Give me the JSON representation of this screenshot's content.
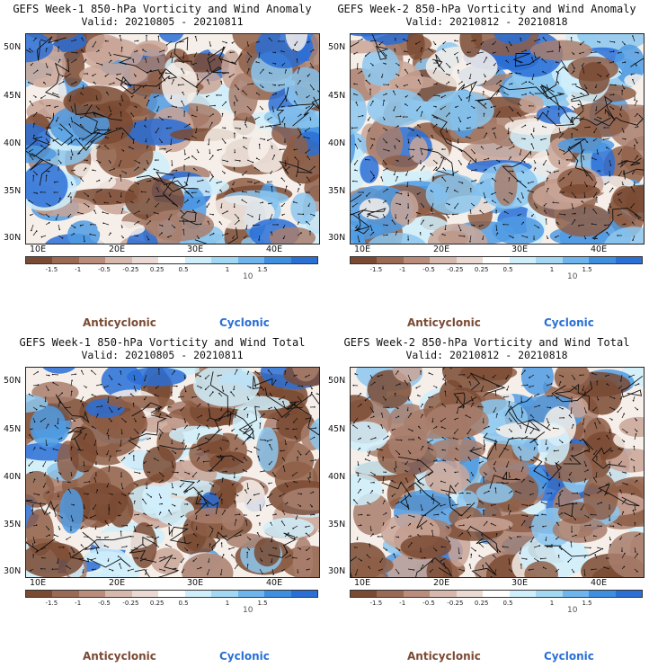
{
  "panels": [
    {
      "title": "GEFS Week-1 850-hPa Vorticity and Wind Anomaly",
      "valid": "Valid: 20210805 - 20210811"
    },
    {
      "title": "GEFS Week-2 850-hPa Vorticity and Wind Anomaly",
      "valid": "Valid: 20210812 - 20210818"
    },
    {
      "title": "GEFS Week-1 850-hPa Vorticity and Wind Total",
      "valid": "Valid: 20210805 - 20210811"
    },
    {
      "title": "GEFS Week-2 850-hPa Vorticity and Wind Total",
      "valid": "Valid: 20210812 - 20210818"
    }
  ],
  "lat_labels": [
    "50N",
    "45N",
    "40N",
    "35N",
    "30N"
  ],
  "lon_labels": [
    "10E",
    "20E",
    "30E",
    "40E"
  ],
  "colorbar": {
    "ticks": [
      "-1.5",
      "-1",
      "-0.5",
      "-0.25",
      "0.25",
      "0.5",
      "1",
      "1.5"
    ],
    "unit": "10",
    "colors": [
      "#7a4a33",
      "#9b6a55",
      "#b98c7b",
      "#d7b8ad",
      "#eadad3",
      "#ffffff",
      "#cfeefb",
      "#a3d8f3",
      "#6db5ec",
      "#3f8fe0",
      "#2a6fd6"
    ]
  },
  "legend": {
    "anticyclonic": "Anticyclonic",
    "cyclonic": "Cyclonic"
  },
  "colors": {
    "anticyclonic": "#7a4a33",
    "cyclonic": "#2a6fd6"
  }
}
